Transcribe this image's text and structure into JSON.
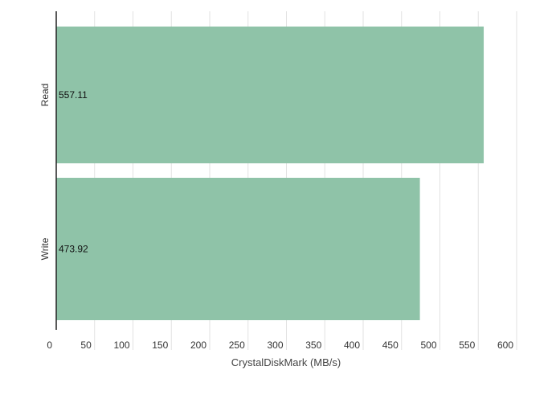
{
  "chart_data": {
    "type": "bar",
    "orientation": "horizontal",
    "categories": [
      "Read",
      "Write"
    ],
    "values": [
      557.11,
      473.92
    ],
    "value_labels": [
      "557.11",
      "473.92"
    ],
    "xlabel": "CrystalDiskMark (MB/s)",
    "ylabel": "",
    "xlim": [
      0,
      600
    ],
    "xticks": [
      0,
      50,
      100,
      150,
      200,
      250,
      300,
      350,
      400,
      450,
      500,
      550,
      600
    ],
    "grid": true,
    "bar_color": "#8fc3a8"
  }
}
